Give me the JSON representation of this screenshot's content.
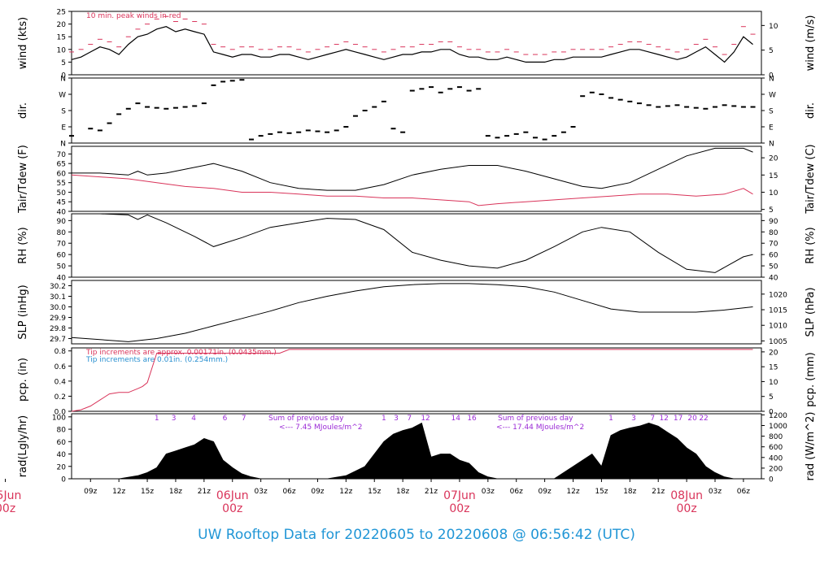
{
  "title": "UW Rooftop Data for 20220605  to  20220608 @ 06:56:42  (UTC)",
  "colors": {
    "primary": "#000000",
    "dew": "#d9345a",
    "peak": "#d9345a",
    "title": "#2196d6",
    "info": "#2a90d0",
    "sun": "#9b2bd6",
    "day": "#d9345a"
  },
  "chart_data": [
    {
      "type": "line",
      "panel": "wind",
      "ylabel": "wind (kts)",
      "ylabel_right": "wind (m/s)",
      "ylim": [
        0,
        25
      ],
      "yticks": [
        0,
        5,
        10,
        15,
        20,
        25
      ],
      "yticks_right": [
        0,
        5,
        10
      ],
      "annotation": "10 min. peak winds in red",
      "series": [
        {
          "name": "wind",
          "x": [
            7,
            8,
            9,
            10,
            11,
            12,
            13,
            14,
            15,
            16,
            17,
            18,
            19,
            20,
            21,
            22,
            23,
            24,
            25,
            26,
            27,
            28,
            29,
            30,
            31,
            32,
            33,
            34,
            35,
            36,
            37,
            38,
            39,
            40,
            41,
            42,
            43,
            44,
            45,
            46,
            47,
            48,
            49,
            50,
            51,
            52,
            53,
            54,
            55,
            56,
            57,
            58,
            59,
            60,
            61,
            62,
            63,
            64,
            65,
            66,
            67,
            68,
            69,
            70,
            71,
            72,
            73,
            74,
            75,
            76,
            77,
            78,
            79
          ],
          "values": [
            6,
            7,
            9,
            11,
            10,
            8,
            12,
            15,
            16,
            18,
            19,
            17,
            18,
            17,
            16,
            9,
            8,
            7,
            8,
            8,
            7,
            7,
            8,
            8,
            7,
            6,
            7,
            8,
            9,
            10,
            9,
            8,
            7,
            6,
            7,
            8,
            8,
            9,
            9,
            10,
            10,
            8,
            7,
            7,
            6,
            6,
            7,
            6,
            5,
            5,
            5,
            6,
            6,
            7,
            7,
            7,
            7,
            8,
            9,
            10,
            10,
            9,
            8,
            7,
            6,
            7,
            9,
            11,
            8,
            5,
            9,
            15,
            12
          ]
        },
        {
          "name": "peak",
          "x": [
            7,
            8,
            9,
            10,
            11,
            12,
            13,
            14,
            15,
            16,
            17,
            18,
            19,
            20,
            21,
            22,
            23,
            24,
            25,
            26,
            27,
            28,
            29,
            30,
            31,
            32,
            33,
            34,
            35,
            36,
            37,
            38,
            39,
            40,
            41,
            42,
            43,
            44,
            45,
            46,
            47,
            48,
            49,
            50,
            51,
            52,
            53,
            54,
            55,
            56,
            57,
            58,
            59,
            60,
            61,
            62,
            63,
            64,
            65,
            66,
            67,
            68,
            69,
            70,
            71,
            72,
            73,
            74,
            75,
            76,
            77,
            78,
            79
          ],
          "values": [
            9,
            10,
            12,
            14,
            13,
            11,
            15,
            18,
            20,
            22,
            23,
            21,
            22,
            21,
            20,
            12,
            11,
            10,
            11,
            11,
            10,
            10,
            11,
            11,
            10,
            9,
            10,
            11,
            12,
            13,
            12,
            11,
            10,
            9,
            10,
            11,
            11,
            12,
            12,
            13,
            13,
            11,
            10,
            10,
            9,
            9,
            10,
            9,
            8,
            8,
            8,
            9,
            9,
            10,
            10,
            10,
            10,
            11,
            12,
            13,
            13,
            12,
            11,
            10,
            9,
            10,
            12,
            14,
            11,
            8,
            12,
            19,
            16
          ]
        }
      ]
    },
    {
      "type": "scatter",
      "panel": "dir",
      "ylabel": "dir.",
      "ylabel_right": "dir.",
      "ylim": [
        0,
        360
      ],
      "ytick_values": [
        0,
        90,
        180,
        270,
        360
      ],
      "ytick_labels": [
        "N",
        "E",
        "S",
        "W",
        "N"
      ],
      "x": [
        7,
        9,
        10,
        11,
        12,
        13,
        14,
        15,
        16,
        17,
        18,
        19,
        20,
        21,
        22,
        23,
        24,
        25,
        26,
        27,
        28,
        29,
        30,
        31,
        32,
        33,
        34,
        35,
        36,
        37,
        38,
        39,
        40,
        41,
        42,
        43,
        44,
        45,
        46,
        47,
        48,
        49,
        50,
        51,
        52,
        53,
        54,
        55,
        56,
        57,
        58,
        59,
        60,
        61,
        62,
        63,
        64,
        65,
        66,
        67,
        68,
        69,
        70,
        71,
        72,
        73,
        74,
        75,
        76,
        77,
        78,
        79
      ],
      "values": [
        40,
        80,
        70,
        110,
        160,
        190,
        220,
        200,
        195,
        190,
        195,
        200,
        205,
        220,
        320,
        340,
        345,
        350,
        20,
        40,
        50,
        60,
        55,
        60,
        70,
        65,
        60,
        70,
        90,
        150,
        180,
        200,
        230,
        80,
        60,
        290,
        300,
        310,
        280,
        300,
        310,
        290,
        300,
        40,
        30,
        40,
        50,
        60,
        30,
        20,
        40,
        60,
        90,
        260,
        280,
        270,
        250,
        240,
        230,
        220,
        210,
        200,
        205,
        210,
        200,
        195,
        190,
        200,
        210,
        205,
        200,
        200
      ]
    },
    {
      "type": "line",
      "panel": "temp",
      "ylabel": "Tair/Tdew (F)",
      "ylabel_right": "Tair/Tdew (C)",
      "ylim": [
        40,
        74
      ],
      "yticks": [
        40,
        45,
        50,
        55,
        60,
        65,
        70
      ],
      "yticks_right": [
        5,
        10,
        15,
        20
      ],
      "series": [
        {
          "name": "Tair",
          "x": [
            7,
            10,
            13,
            14,
            15,
            17,
            20,
            22,
            25,
            28,
            31,
            34,
            37,
            40,
            43,
            46,
            49,
            52,
            55,
            58,
            61,
            63,
            66,
            69,
            72,
            75,
            78,
            79
          ],
          "values": [
            60,
            60,
            59,
            61,
            59,
            60,
            63,
            65,
            61,
            55,
            52,
            51,
            51,
            54,
            59,
            62,
            64,
            64,
            61,
            57,
            53,
            52,
            55,
            62,
            69,
            73,
            73,
            71
          ]
        },
        {
          "name": "Tdew",
          "x": [
            7,
            10,
            13,
            16,
            19,
            22,
            25,
            28,
            31,
            34,
            37,
            40,
            43,
            46,
            49,
            50,
            52,
            55,
            58,
            61,
            64,
            67,
            70,
            73,
            76,
            78,
            79
          ],
          "values": [
            59,
            58,
            57,
            55,
            53,
            52,
            50,
            50,
            49,
            48,
            48,
            47,
            47,
            46,
            45,
            43,
            44,
            45,
            46,
            47,
            48,
            49,
            49,
            48,
            49,
            52,
            49
          ]
        }
      ]
    },
    {
      "type": "line",
      "panel": "rh",
      "ylabel": "RH (%)",
      "ylabel_right": "RH (%)",
      "ylim": [
        40,
        96
      ],
      "yticks": [
        40,
        50,
        60,
        70,
        80,
        90
      ],
      "series": [
        {
          "name": "RH",
          "x": [
            7,
            10,
            13,
            14,
            15,
            17,
            20,
            22,
            25,
            28,
            31,
            34,
            37,
            40,
            43,
            46,
            49,
            52,
            55,
            58,
            61,
            63,
            66,
            69,
            72,
            75,
            78,
            79
          ],
          "values": [
            96,
            96,
            95,
            91,
            95,
            88,
            76,
            67,
            75,
            84,
            88,
            92,
            91,
            82,
            62,
            55,
            50,
            48,
            55,
            67,
            80,
            84,
            80,
            62,
            47,
            44,
            58,
            60
          ]
        }
      ]
    },
    {
      "type": "line",
      "panel": "slp",
      "ylabel": "SLP (inHg)",
      "ylabel_right": "SLP (hPa)",
      "ylim": [
        29.65,
        30.25
      ],
      "yticks": [
        29.7,
        29.8,
        29.9,
        30.0,
        30.1,
        30.2
      ],
      "yticks_right": [
        1005,
        1010,
        1015,
        1020
      ],
      "series": [
        {
          "name": "SLP",
          "x": [
            7,
            10,
            13,
            16,
            19,
            22,
            25,
            28,
            31,
            34,
            37,
            40,
            43,
            46,
            49,
            52,
            55,
            58,
            61,
            64,
            67,
            70,
            73,
            76,
            79
          ],
          "values": [
            29.71,
            29.69,
            29.67,
            29.7,
            29.75,
            29.82,
            29.89,
            29.96,
            30.04,
            30.1,
            30.15,
            30.19,
            30.21,
            30.22,
            30.22,
            30.21,
            30.19,
            30.14,
            30.06,
            29.98,
            29.95,
            29.95,
            29.95,
            29.97,
            30.0
          ]
        }
      ]
    },
    {
      "type": "line",
      "panel": "pcp",
      "ylabel": "pcp. (in)",
      "ylabel_right": "pcp. (mm)",
      "ylim": [
        0,
        0.84
      ],
      "yticks": [
        0.0,
        0.2,
        0.4,
        0.6,
        0.8
      ],
      "yticks_right": [
        0,
        5,
        10,
        15,
        20
      ],
      "notes": [
        "Tip increments are approx. 0.00171in. (0.0435mm.)",
        "Tip increments are 0.01in. (0.254mm.)"
      ],
      "series": [
        {
          "name": "pcp",
          "x": [
            7,
            8,
            9,
            10,
            11,
            12,
            13,
            14,
            14.5,
            15,
            16,
            20,
            25,
            29,
            30,
            40,
            50,
            60,
            70,
            79
          ],
          "values": [
            0.0,
            0.02,
            0.07,
            0.15,
            0.23,
            0.25,
            0.25,
            0.3,
            0.33,
            0.38,
            0.77,
            0.77,
            0.77,
            0.77,
            0.82,
            0.82,
            0.82,
            0.82,
            0.82,
            0.82
          ]
        }
      ]
    },
    {
      "type": "area",
      "panel": "rad",
      "ylabel": "rad(Lgly/hr)",
      "ylabel_right": "rad (W/m^2)",
      "ylim": [
        0,
        105
      ],
      "yticks": [
        0,
        20,
        40,
        60,
        80,
        100
      ],
      "yticks_right": [
        0,
        200,
        400,
        600,
        800,
        1000,
        1200
      ],
      "hour_marks": [
        {
          "label": "1",
          "x": 16
        },
        {
          "label": "3",
          "x": 17.8
        },
        {
          "label": "4",
          "x": 19.9
        },
        {
          "label": "6",
          "x": 23.2
        },
        {
          "label": "7",
          "x": 25.2
        },
        {
          "label": "1",
          "x": 40
        },
        {
          "label": "3",
          "x": 41.3
        },
        {
          "label": "7",
          "x": 42.7
        },
        {
          "label": "12",
          "x": 44.4
        },
        {
          "label": "14",
          "x": 47.6
        },
        {
          "label": "16",
          "x": 49.3
        },
        {
          "label": "1",
          "x": 64
        },
        {
          "label": "3",
          "x": 66.4
        },
        {
          "label": "7",
          "x": 68.4
        },
        {
          "label": "12",
          "x": 69.6
        },
        {
          "label": "17",
          "x": 71.1
        },
        {
          "label": "20",
          "x": 72.6
        },
        {
          "label": "22",
          "x": 73.8
        }
      ],
      "daily_sums": [
        {
          "header": "Sum of previous day",
          "value": "<--- 7.45 MJoules/m^2"
        },
        {
          "header": "Sum of previous day",
          "value": "<--- 17.44 MJoules/m^2"
        }
      ],
      "series": [
        {
          "name": "rad",
          "x": [
            12,
            14,
            15,
            16,
            17,
            18,
            19,
            20,
            21,
            22,
            23,
            24,
            25,
            26,
            27,
            34,
            36,
            38,
            40,
            41,
            42,
            43,
            44,
            45,
            46,
            47,
            48,
            49,
            50,
            51,
            52,
            58,
            60,
            62,
            63,
            64,
            65,
            66,
            67,
            68,
            69,
            70,
            71,
            72,
            73,
            74,
            75,
            76,
            77
          ],
          "values": [
            0,
            5,
            10,
            18,
            40,
            45,
            50,
            55,
            65,
            60,
            30,
            18,
            8,
            3,
            0,
            0,
            5,
            20,
            60,
            72,
            78,
            82,
            90,
            35,
            40,
            40,
            30,
            25,
            10,
            3,
            0,
            0,
            20,
            40,
            20,
            70,
            78,
            82,
            85,
            90,
            85,
            75,
            65,
            50,
            40,
            20,
            10,
            3,
            0
          ]
        }
      ]
    }
  ],
  "x_axis": {
    "ticks": [
      {
        "label": "09z",
        "x": 9
      },
      {
        "label": "12z",
        "x": 12
      },
      {
        "label": "15z",
        "x": 15
      },
      {
        "label": "18z",
        "x": 18
      },
      {
        "label": "21z",
        "x": 21
      },
      {
        "label": "03z",
        "x": 27
      },
      {
        "label": "06z",
        "x": 30
      },
      {
        "label": "09z",
        "x": 33
      },
      {
        "label": "12z",
        "x": 36
      },
      {
        "label": "15z",
        "x": 39
      },
      {
        "label": "18z",
        "x": 42
      },
      {
        "label": "21z",
        "x": 45
      },
      {
        "label": "03z",
        "x": 51
      },
      {
        "label": "06z",
        "x": 54
      },
      {
        "label": "09z",
        "x": 57
      },
      {
        "label": "12z",
        "x": 60
      },
      {
        "label": "15z",
        "x": 63
      },
      {
        "label": "18z",
        "x": 66
      },
      {
        "label": "21z",
        "x": 69
      },
      {
        "label": "03z",
        "x": 75
      },
      {
        "label": "06z",
        "x": 78
      }
    ],
    "day_labels": [
      {
        "date": "05Jun",
        "time": "00z",
        "x": 0
      },
      {
        "date": "06Jun",
        "time": "00z",
        "x": 24
      },
      {
        "date": "07Jun",
        "time": "00z",
        "x": 48
      },
      {
        "date": "08Jun",
        "time": "00z",
        "x": 72
      }
    ],
    "xlim": [
      7,
      79.9
    ]
  }
}
